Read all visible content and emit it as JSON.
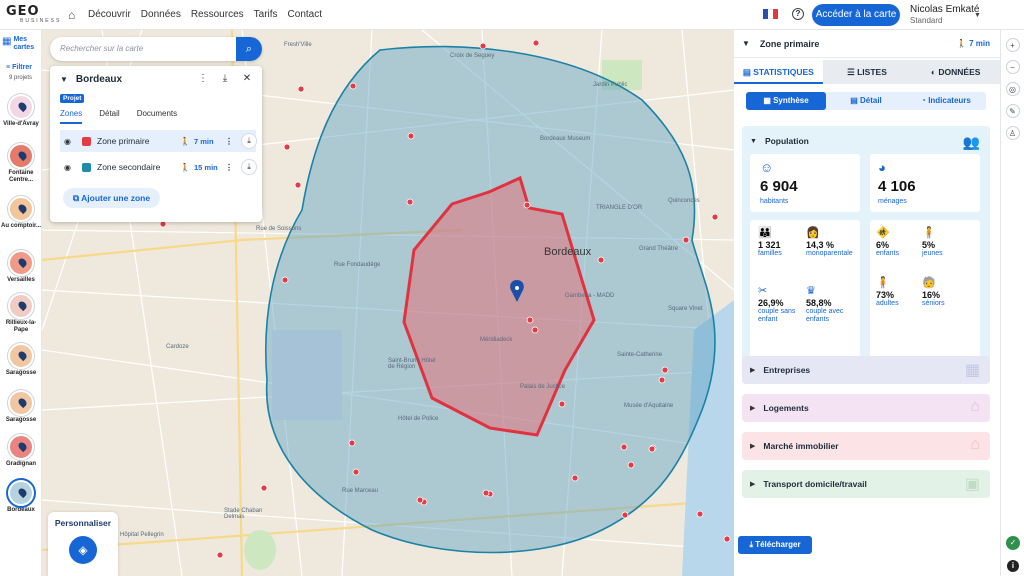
{
  "header": {
    "logo_text": "GEO",
    "logo_sub": "BUSINESS",
    "nav": [
      "Découvrir",
      "Données",
      "Ressources",
      "Tarifs",
      "Contact"
    ],
    "map_button": "Accéder à la carte",
    "user_name": "Nicolas Emkaté",
    "user_plan": "Standard"
  },
  "leftbar": {
    "my_maps": "Mes cartes",
    "filter": "Filtrer",
    "count": "9 projets",
    "locations": [
      {
        "label": "Ville-d'Avray",
        "color": "#f3d7e4"
      },
      {
        "label": "Fontaine Centre...",
        "color": "#e57a6a"
      },
      {
        "label": "Au comptoir...",
        "color": "#f2c59b"
      },
      {
        "label": "Versailles",
        "color": "#f09b87"
      },
      {
        "label": "Rillieux-la-Pape",
        "color": "#f1ccc4"
      },
      {
        "label": "Saragosse",
        "color": "#f1c6a3"
      },
      {
        "label": "Saragosse",
        "color": "#f1c6a3"
      },
      {
        "label": "Gradignan",
        "color": "#e98581"
      },
      {
        "label": "Bordeaux",
        "color": "#b7d2df"
      }
    ]
  },
  "search": {
    "placeholder": "Rechercher sur la carte"
  },
  "zone_panel": {
    "title": "Bordeaux",
    "tag": "Projet",
    "tabs": [
      "Zones",
      "Détail",
      "Documents"
    ],
    "zones": [
      {
        "name": "Zone primaire",
        "time": "7 min",
        "color": "#e53b46"
      },
      {
        "name": "Zone secondaire",
        "time": "15 min",
        "color": "#1f8bab"
      }
    ],
    "add_zone": "Ajouter une zone"
  },
  "map": {
    "city": "Bordeaux",
    "labels": [
      "Croix de Seguey",
      "Jardin Public",
      "Bordeaux Museum",
      "TRIANGLE D'OR",
      "Quinconces",
      "Grand Théâtre",
      "Saint-Bruno Hôtel de Région",
      "Méridiadeck",
      "Palais de Justice",
      "Sainte-Catherine",
      "Musée d'Aquitaine",
      "Hôtel de Police",
      "Stade Chaban Delmas",
      "Hôpital Pellegrin",
      "Cardoze",
      "Gambetta - MADD",
      "Square Vinet",
      "Fresh'Ville",
      "Rue de Soissons",
      "Rue Fondaudège",
      "Rue Marceau"
    ]
  },
  "personalize": {
    "label": "Personnaliser"
  },
  "side": {
    "zone_title": "Zone primaire",
    "zone_time": "7 min",
    "tabs": [
      "STATISTIQUES",
      "LISTES",
      "DONNÉES"
    ],
    "subtabs": [
      "Synthèse",
      "Détail",
      "Indicateurs"
    ],
    "population": {
      "title": "Population",
      "habitants_value": "6 904",
      "habitants_label": "habitants",
      "menages_value": "4 106",
      "menages_label": "ménages",
      "stats_left": [
        {
          "value": "1 321",
          "label": "familles"
        },
        {
          "value": "14,3 %",
          "label": "monoparentale"
        },
        {
          "value": "26,9%",
          "label": "couple sans enfant"
        },
        {
          "value": "58,8%",
          "label": "couple avec enfants"
        }
      ],
      "stats_right": [
        {
          "value": "6%",
          "label": "enfants"
        },
        {
          "value": "5%",
          "label": "jeunes"
        },
        {
          "value": "73%",
          "label": "adultes"
        },
        {
          "value": "16%",
          "label": "séniors"
        }
      ]
    },
    "sections": [
      {
        "label": "Entreprises",
        "bg": "#e6e7f5"
      },
      {
        "label": "Logements",
        "bg": "#f4e3f3"
      },
      {
        "label": "Marché immobilier",
        "bg": "#fbe3e6"
      },
      {
        "label": "Transport domicile/travail",
        "bg": "#e3f2e6"
      }
    ],
    "download": "Télécharger"
  }
}
